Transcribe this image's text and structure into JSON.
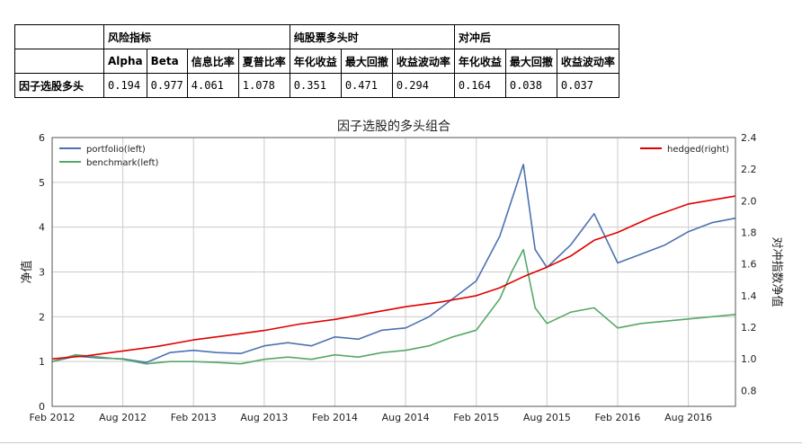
{
  "table": {
    "group_headers": [
      "风险指标",
      "纯股票多头时",
      "对冲后"
    ],
    "columns": [
      "Alpha",
      "Beta",
      "信息比率",
      "夏普比率",
      "年化收益",
      "最大回撤",
      "收益波动率",
      "年化收益",
      "最大回撤",
      "收益波动率"
    ],
    "row_label": "因子选股多头",
    "values": [
      "0.194",
      "0.977",
      "4.061",
      "1.078",
      "0.351",
      "0.471",
      "0.294",
      "0.164",
      "0.038",
      "0.037"
    ]
  },
  "chart_data": {
    "type": "line",
    "title": "因子选股的多头组合",
    "ylabel_left": "净值",
    "ylabel_right": "对冲指数净值",
    "ylim_left": [
      0,
      6
    ],
    "ylim_right": [
      0.7,
      2.4
    ],
    "yticks_left": [
      "0",
      "1",
      "2",
      "3",
      "4",
      "5",
      "6"
    ],
    "yticks_right": [
      "0.8",
      "1.0",
      "1.2",
      "1.4",
      "1.6",
      "1.8",
      "2.0",
      "2.2",
      "2.4"
    ],
    "xticks": [
      "Feb 2012",
      "Aug 2012",
      "Feb 2013",
      "Aug 2013",
      "Feb 2014",
      "Aug 2014",
      "Feb 2015",
      "Aug 2015",
      "Feb 2016",
      "Aug 2016"
    ],
    "xlim": [
      "2012-02",
      "2016-12"
    ],
    "grid": true,
    "legend_left": "top-left",
    "legend_right": "top-right",
    "series": [
      {
        "name": "portfolio(left)",
        "axis": "left",
        "color": "#4c72b0",
        "x": [
          "2012-02",
          "2012-04",
          "2012-06",
          "2012-08",
          "2012-10",
          "2012-12",
          "2013-02",
          "2013-04",
          "2013-06",
          "2013-08",
          "2013-10",
          "2013-12",
          "2014-02",
          "2014-04",
          "2014-06",
          "2014-08",
          "2014-10",
          "2014-12",
          "2015-02",
          "2015-04",
          "2015-05",
          "2015-06",
          "2015-07",
          "2015-08",
          "2015-10",
          "2015-12",
          "2016-02",
          "2016-04",
          "2016-06",
          "2016-08",
          "2016-10",
          "2016-12"
        ],
        "values": [
          1.0,
          1.12,
          1.08,
          1.06,
          0.98,
          1.2,
          1.25,
          1.2,
          1.18,
          1.35,
          1.42,
          1.35,
          1.55,
          1.5,
          1.7,
          1.75,
          2.0,
          2.4,
          2.8,
          3.8,
          4.6,
          5.4,
          3.5,
          3.1,
          3.6,
          4.3,
          3.2,
          3.4,
          3.6,
          3.9,
          4.1,
          4.2
        ]
      },
      {
        "name": "benchmark(left)",
        "axis": "left",
        "color": "#55a868",
        "x": [
          "2012-02",
          "2012-04",
          "2012-06",
          "2012-08",
          "2012-10",
          "2012-12",
          "2013-02",
          "2013-04",
          "2013-06",
          "2013-08",
          "2013-10",
          "2013-12",
          "2014-02",
          "2014-04",
          "2014-06",
          "2014-08",
          "2014-10",
          "2014-12",
          "2015-02",
          "2015-04",
          "2015-05",
          "2015-06",
          "2015-07",
          "2015-08",
          "2015-10",
          "2015-12",
          "2016-02",
          "2016-04",
          "2016-06",
          "2016-08",
          "2016-10",
          "2016-12"
        ],
        "values": [
          1.0,
          1.15,
          1.1,
          1.05,
          0.95,
          1.0,
          1.0,
          0.98,
          0.95,
          1.05,
          1.1,
          1.05,
          1.15,
          1.1,
          1.2,
          1.25,
          1.35,
          1.55,
          1.7,
          2.4,
          3.0,
          3.5,
          2.2,
          1.85,
          2.1,
          2.2,
          1.75,
          1.85,
          1.9,
          1.95,
          2.0,
          2.05
        ]
      },
      {
        "name": "hedged(right)",
        "axis": "right",
        "color": "#e00000",
        "x": [
          "2012-02",
          "2012-05",
          "2012-08",
          "2012-11",
          "2013-02",
          "2013-05",
          "2013-08",
          "2013-11",
          "2014-02",
          "2014-05",
          "2014-08",
          "2014-11",
          "2015-02",
          "2015-04",
          "2015-06",
          "2015-08",
          "2015-10",
          "2015-12",
          "2016-02",
          "2016-05",
          "2016-08",
          "2016-12"
        ],
        "values": [
          1.0,
          1.02,
          1.05,
          1.08,
          1.12,
          1.15,
          1.18,
          1.22,
          1.25,
          1.29,
          1.33,
          1.36,
          1.4,
          1.45,
          1.52,
          1.58,
          1.65,
          1.75,
          1.8,
          1.9,
          1.98,
          2.03
        ]
      }
    ]
  }
}
